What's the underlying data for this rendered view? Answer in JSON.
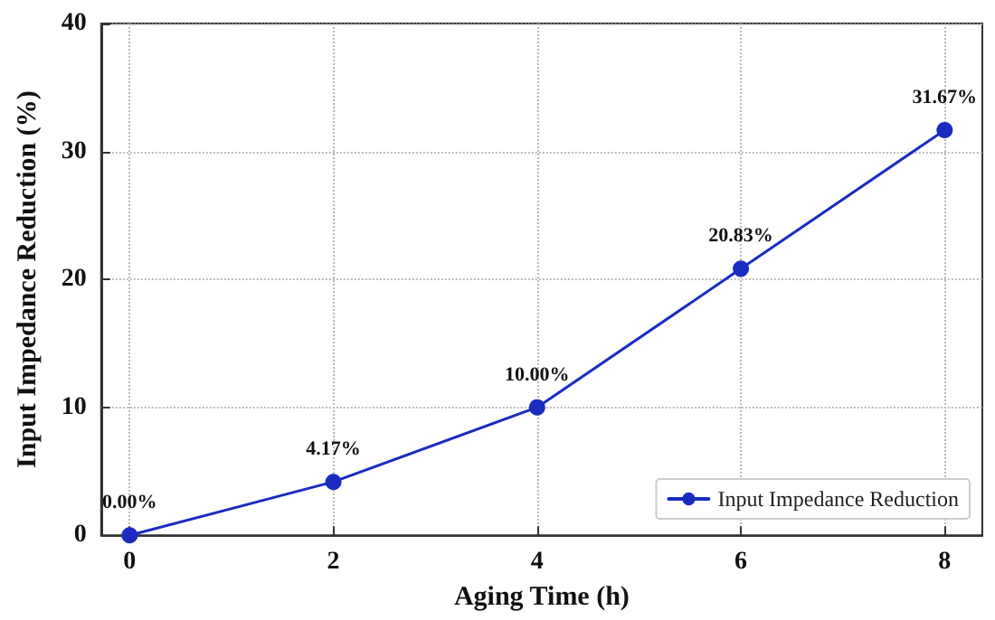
{
  "chart_data": {
    "type": "line",
    "xlabel": "Aging Time (h)",
    "ylabel": "Input Impedance Reduction (%)",
    "x": [
      0,
      2,
      4,
      6,
      8
    ],
    "series": [
      {
        "name": "Input Impedance Reduction",
        "color": "#1a2cc0",
        "values": [
          0,
          4.17,
          10.0,
          20.83,
          31.67
        ],
        "value_labels": [
          "0.00%",
          "4.17%",
          "10.00%",
          "20.83%",
          "31.67%"
        ]
      }
    ],
    "xlim": [
      -0.28,
      8.37
    ],
    "xticks": [
      0,
      2,
      4,
      6,
      8
    ],
    "ylim": [
      0,
      40
    ],
    "yticks": [
      0,
      10,
      20,
      30,
      40
    ],
    "grid": true,
    "legend": "bottom right",
    "marker": "circle",
    "line_style": "solid"
  }
}
